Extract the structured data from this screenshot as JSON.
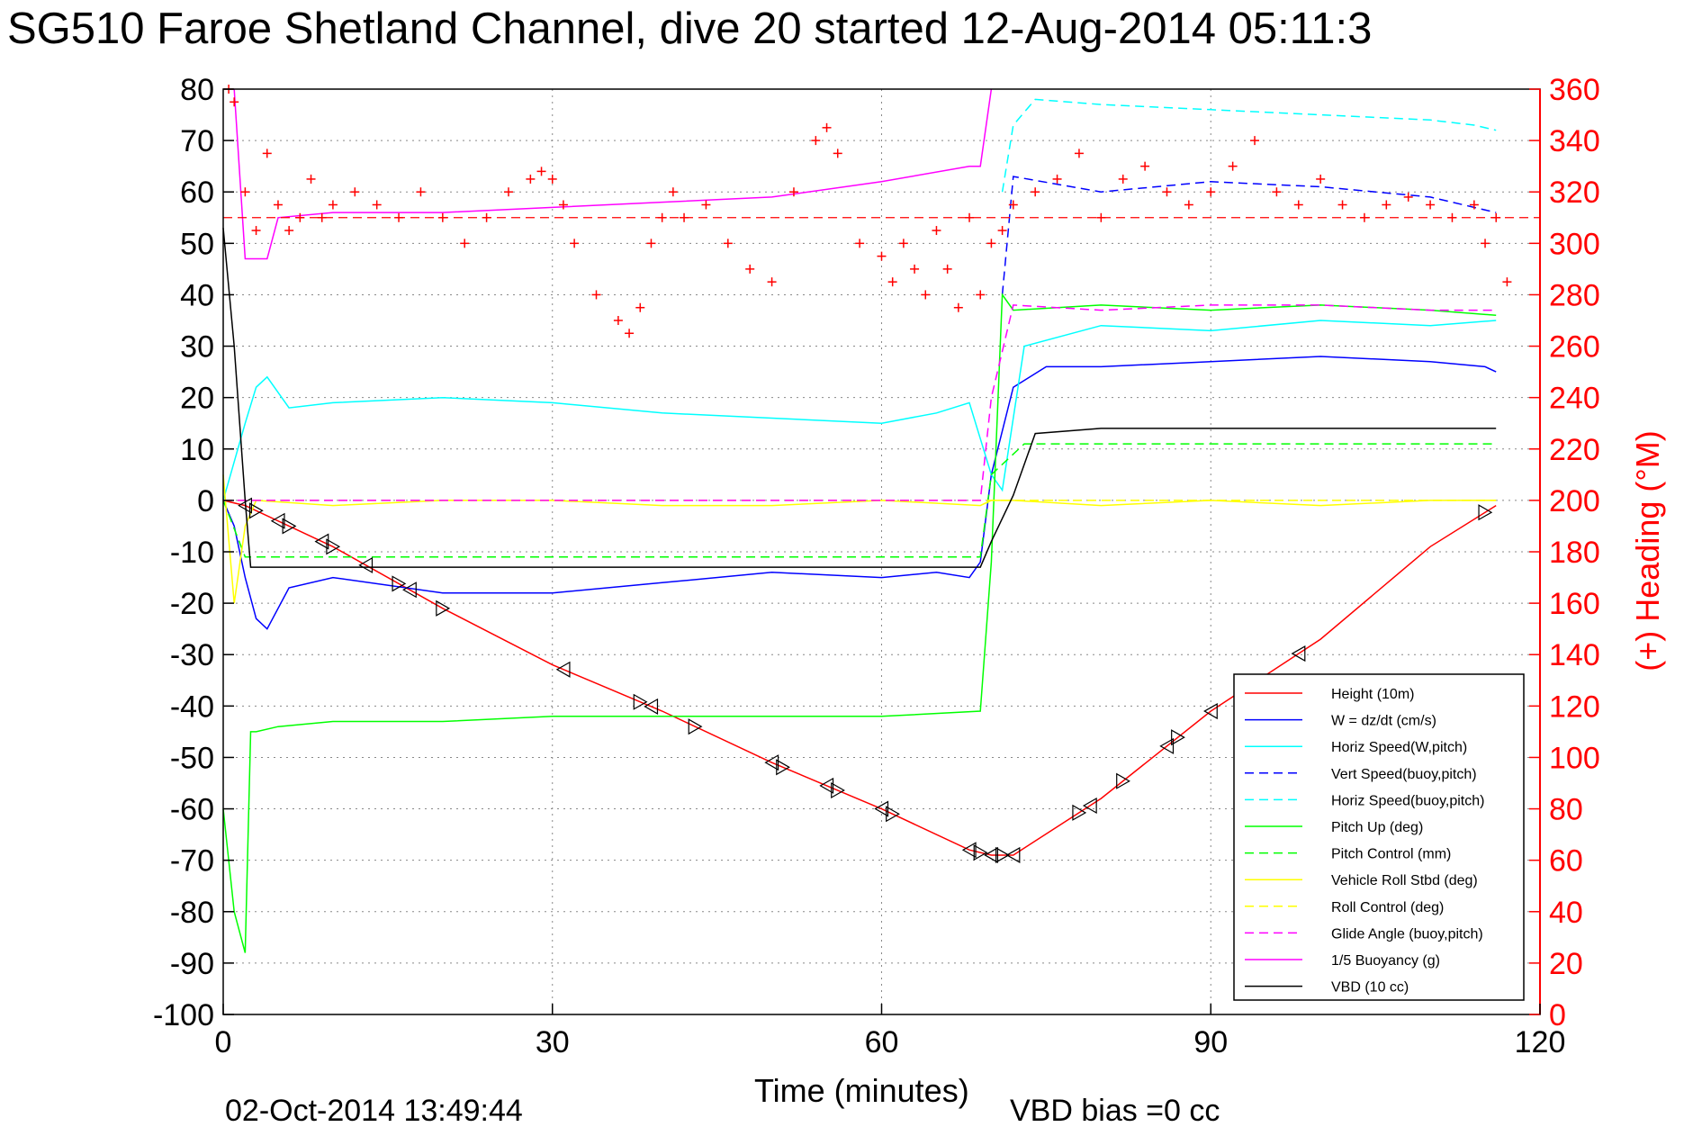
{
  "chart_data": {
    "type": "line",
    "title": "SG510 Faroe Shetland Channel, dive 20 started 12-Aug-2014 05:11:3",
    "xlabel": "Time (minutes)",
    "ylabel_right": "(+) Heading (°M)",
    "footer_date": "02-Oct-2014 13:49:44",
    "footer_vbd": "VBD bias =0 cc",
    "xlim": [
      0,
      120
    ],
    "ylim": [
      -100,
      80
    ],
    "y2lim": [
      0,
      360
    ],
    "x_ticks": [
      0,
      30,
      60,
      90,
      120
    ],
    "y_ticks": [
      80,
      70,
      60,
      50,
      40,
      30,
      20,
      10,
      0,
      -10,
      -20,
      -30,
      -40,
      -50,
      -60,
      -70,
      -80,
      -90,
      -100
    ],
    "y2_ticks": [
      360,
      340,
      320,
      300,
      280,
      260,
      240,
      220,
      200,
      180,
      160,
      140,
      120,
      100,
      80,
      60,
      40,
      20,
      0
    ],
    "grid": true,
    "legend_position": "bottom-right",
    "colors": {
      "red": "#ff0000",
      "blue": "#0000ff",
      "cyan": "#00ffff",
      "green": "#00ff00",
      "yellow": "#ffff00",
      "magenta": "#ff00ff",
      "black": "#000000"
    },
    "series": [
      {
        "name": "Height (10m)",
        "color": "#ff0000",
        "dash": false,
        "x": [
          0,
          2,
          10,
          20,
          30,
          40,
          50,
          60,
          68,
          70,
          72,
          80,
          90,
          100,
          110,
          116
        ],
        "y": [
          0,
          -1,
          -9,
          -21,
          -32,
          -41,
          -51,
          -60,
          -68,
          -69,
          -69,
          -58,
          -41,
          -27,
          -9,
          -1
        ]
      },
      {
        "name": "W = dz/dt (cm/s)",
        "color": "#0000ff",
        "dash": false,
        "x": [
          0,
          1,
          2,
          3,
          4,
          6,
          10,
          20,
          30,
          40,
          50,
          60,
          65,
          68,
          69,
          70,
          72,
          75,
          80,
          90,
          100,
          110,
          115,
          116
        ],
        "y": [
          0,
          -5,
          -15,
          -23,
          -25,
          -17,
          -15,
          -18,
          -18,
          -16,
          -14,
          -15,
          -14,
          -15,
          -12,
          5,
          22,
          26,
          26,
          27,
          28,
          27,
          26,
          25
        ]
      },
      {
        "name": "Horiz Speed(W,pitch)",
        "color": "#00ffff",
        "dash": false,
        "x": [
          0,
          2,
          3,
          4,
          6,
          10,
          20,
          30,
          40,
          50,
          60,
          65,
          68,
          70,
          71,
          73,
          80,
          90,
          100,
          110,
          116
        ],
        "y": [
          0,
          15,
          22,
          24,
          18,
          19,
          20,
          19,
          17,
          16,
          15,
          17,
          19,
          5,
          2,
          30,
          34,
          33,
          35,
          34,
          35
        ]
      },
      {
        "name": "Vert Speed(buoy,pitch)",
        "color": "#0000ff",
        "dash": true,
        "x": [
          71,
          72,
          80,
          90,
          100,
          110,
          116
        ],
        "y": [
          40,
          63,
          60,
          62,
          61,
          59,
          56
        ]
      },
      {
        "name": "Horiz Speed(buoy,pitch)",
        "color": "#00ffff",
        "dash": true,
        "x": [
          71,
          72,
          74,
          80,
          90,
          100,
          110,
          114,
          116
        ],
        "y": [
          60,
          73,
          78,
          77,
          76,
          75,
          74,
          73,
          72
        ]
      },
      {
        "name": "Pitch Up (deg)",
        "color": "#00ff00",
        "dash": false,
        "x": [
          0,
          1,
          2,
          2.5,
          3,
          5,
          10,
          20,
          30,
          40,
          50,
          60,
          69,
          70,
          71,
          72,
          80,
          90,
          100,
          110,
          116
        ],
        "y": [
          -60,
          -80,
          -88,
          -45,
          -45,
          -44,
          -43,
          -43,
          -42,
          -42,
          -42,
          -42,
          -41,
          -12,
          40,
          37,
          38,
          37,
          38,
          37,
          36
        ]
      },
      {
        "name": "Pitch Control (mm)",
        "color": "#00ff00",
        "dash": true,
        "x": [
          0,
          2,
          10,
          30,
          60,
          69,
          70,
          73,
          80,
          90,
          100,
          110,
          116
        ],
        "y": [
          0,
          -11,
          -11,
          -11,
          -11,
          -11,
          5,
          11,
          11,
          11,
          11,
          11,
          11
        ]
      },
      {
        "name": "Vehicle Roll Stbd (deg)",
        "color": "#ffff00",
        "dash": false,
        "x": [
          0,
          1,
          2,
          3,
          10,
          20,
          30,
          40,
          50,
          60,
          69,
          70,
          72,
          80,
          90,
          100,
          110,
          116
        ],
        "y": [
          5,
          -20,
          -5,
          0,
          -1,
          0,
          0,
          -1,
          -1,
          0,
          -1,
          0,
          0,
          -1,
          0,
          -1,
          0,
          0
        ]
      },
      {
        "name": "Roll Control (deg)",
        "color": "#ffff00",
        "dash": true,
        "x": [
          0,
          2,
          30,
          69,
          70,
          116
        ],
        "y": [
          0,
          0,
          0,
          0,
          0,
          0
        ]
      },
      {
        "name": "Glide Angle (buoy,pitch)",
        "color": "#ff00ff",
        "dash": true,
        "x": [
          0,
          2,
          10,
          30,
          60,
          69,
          70,
          72,
          80,
          90,
          100,
          110,
          116
        ],
        "y": [
          0,
          0,
          0,
          0,
          0,
          0,
          20,
          38,
          37,
          38,
          38,
          37,
          37
        ]
      },
      {
        "name": "1/5 Buoyancy (g)",
        "color": "#ff00ff",
        "dash": false,
        "x": [
          1,
          2,
          4,
          5,
          10,
          20,
          30,
          40,
          50,
          60,
          68,
          69,
          70
        ],
        "y": [
          80,
          47,
          47,
          55,
          56,
          56,
          57,
          58,
          59,
          62,
          65,
          65,
          80
        ]
      },
      {
        "name": "VBD (10 cc)",
        "color": "#000000",
        "dash": false,
        "x": [
          0,
          1,
          2,
          2.5,
          10,
          30,
          60,
          69,
          70,
          72,
          74,
          80,
          90,
          100,
          110,
          116
        ],
        "y": [
          53,
          30,
          0,
          -13,
          -13,
          -13,
          -13,
          -13,
          -8,
          1,
          13,
          14,
          14,
          14,
          14,
          14
        ]
      }
    ],
    "heading_points": {
      "name": "(+) Heading",
      "axis": "right",
      "color": "#ff0000",
      "marker": "+",
      "x": [
        0.5,
        1,
        2,
        3,
        4,
        5,
        6,
        7,
        8,
        9,
        10,
        12,
        14,
        16,
        18,
        20,
        22,
        24,
        26,
        28,
        29,
        30,
        31,
        32,
        34,
        36,
        37,
        38,
        39,
        40,
        41,
        42,
        44,
        46,
        48,
        50,
        52,
        54,
        55,
        56,
        58,
        60,
        61,
        62,
        63,
        64,
        65,
        66,
        67,
        68,
        69,
        70,
        71,
        72,
        74,
        76,
        78,
        80,
        82,
        84,
        86,
        88,
        90,
        92,
        94,
        96,
        98,
        100,
        102,
        104,
        106,
        108,
        110,
        112,
        114,
        115,
        116,
        117
      ],
      "y": [
        360,
        355,
        320,
        305,
        335,
        315,
        305,
        310,
        325,
        310,
        315,
        320,
        315,
        310,
        320,
        310,
        300,
        310,
        320,
        325,
        328,
        325,
        315,
        300,
        280,
        270,
        265,
        275,
        300,
        310,
        320,
        310,
        315,
        300,
        290,
        285,
        320,
        340,
        345,
        335,
        300,
        295,
        285,
        300,
        290,
        280,
        305,
        290,
        275,
        310,
        280,
        300,
        305,
        315,
        320,
        325,
        335,
        310,
        325,
        330,
        320,
        315,
        320,
        330,
        340,
        320,
        315,
        325,
        315,
        310,
        315,
        318,
        315,
        310,
        315,
        300,
        310,
        285
      ]
    },
    "triangle_markers": {
      "series": "Height (10m)",
      "x": [
        2,
        3,
        5,
        6,
        9,
        10,
        13,
        16,
        17,
        20,
        31,
        38,
        39,
        43,
        50,
        51,
        55,
        56,
        60,
        61,
        68,
        69,
        70,
        71,
        72,
        78,
        79,
        82,
        86,
        87,
        90,
        94,
        98,
        115
      ]
    }
  }
}
